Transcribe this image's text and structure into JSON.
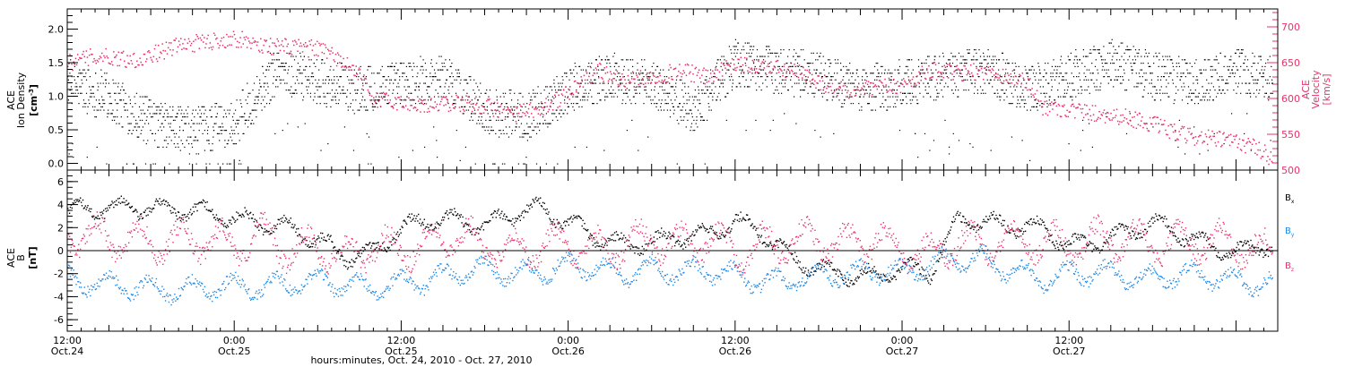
{
  "chart_data": [
    {
      "panel": "ion-density-velocity",
      "type": "scatter",
      "ylabel": {
        "line1": "ACE",
        "line2": "Ion Density",
        "unit": "[cm",
        "unit_sup": "-3",
        "unit_end": "]"
      },
      "ylim": [
        -0.1,
        2.3
      ],
      "yticks": [
        "0.0",
        "0.5",
        "1.0",
        "1.5",
        "2.0"
      ],
      "y2label": {
        "line1": "ACE",
        "line2": "Velocity",
        "unit": "[km/s]"
      },
      "y2lim": [
        500,
        725
      ],
      "y2ticks": [
        "500",
        "550",
        "600",
        "650",
        "700"
      ],
      "colors": {
        "density": "#000000",
        "velocity": "#e8336a"
      },
      "series": [
        {
          "key": "density",
          "axis": "left",
          "anchors": [
            [
              0,
              1.2
            ],
            [
              3,
              1.0
            ],
            [
              6,
              0.6
            ],
            [
              9,
              0.5
            ],
            [
              12,
              0.6
            ],
            [
              15,
              1.4
            ],
            [
              18,
              1.2
            ],
            [
              21,
              1.1
            ],
            [
              24,
              1.2
            ],
            [
              27,
              1.3
            ],
            [
              30,
              0.8
            ],
            [
              33,
              0.7
            ],
            [
              36,
              1.1
            ],
            [
              39,
              1.3
            ],
            [
              42,
              1.2
            ],
            [
              45,
              0.8
            ],
            [
              48,
              1.5
            ],
            [
              51,
              1.4
            ],
            [
              54,
              1.3
            ],
            [
              57,
              1.1
            ],
            [
              60,
              1.2
            ],
            [
              63,
              1.3
            ],
            [
              66,
              1.4
            ],
            [
              69,
              1.1
            ],
            [
              72,
              1.3
            ],
            [
              75,
              1.5
            ],
            [
              78,
              1.3
            ],
            [
              81,
              1.2
            ],
            [
              84,
              1.4
            ],
            [
              86.5,
              1.3
            ]
          ],
          "spread": 0.35
        },
        {
          "key": "velocity",
          "axis": "right",
          "anchors": [
            [
              0,
              650
            ],
            [
              2,
              660
            ],
            [
              5,
              655
            ],
            [
              8,
              675
            ],
            [
              10,
              680
            ],
            [
              12,
              685
            ],
            [
              14,
              675
            ],
            [
              16,
              672
            ],
            [
              18,
              670
            ],
            [
              19,
              660
            ],
            [
              20,
              650
            ],
            [
              21,
              630
            ],
            [
              22,
              600
            ],
            [
              24,
              595
            ],
            [
              26,
              590
            ],
            [
              28,
              595
            ],
            [
              30,
              590
            ],
            [
              32,
              580
            ],
            [
              34,
              585
            ],
            [
              36,
              610
            ],
            [
              38,
              640
            ],
            [
              40,
              625
            ],
            [
              42,
              630
            ],
            [
              44,
              640
            ],
            [
              46,
              630
            ],
            [
              48,
              648
            ],
            [
              50,
              645
            ],
            [
              52,
              640
            ],
            [
              54,
              625
            ],
            [
              56,
              610
            ],
            [
              58,
              615
            ],
            [
              60,
              620
            ],
            [
              62,
              640
            ],
            [
              64,
              635
            ],
            [
              66,
              640
            ],
            [
              68,
              630
            ],
            [
              69,
              622
            ],
            [
              70,
              590
            ],
            [
              72,
              585
            ],
            [
              74,
              580
            ],
            [
              76,
              575
            ],
            [
              78,
              565
            ],
            [
              80,
              550
            ],
            [
              82,
              545
            ],
            [
              84,
              540
            ],
            [
              85,
              535
            ],
            [
              86,
              525
            ],
            [
              86.5,
              518
            ]
          ],
          "spread": 12
        }
      ]
    },
    {
      "panel": "magnetic-field",
      "type": "scatter",
      "ylabel": {
        "line1": "ACE",
        "line2": "B",
        "unit": "[nT]"
      },
      "ylim": [
        -7,
        7
      ],
      "yticks": [
        "-6",
        "-4",
        "-2",
        "0",
        "2",
        "4",
        "6"
      ],
      "reference_line": 0,
      "legend": [
        "B",
        "B",
        "B"
      ],
      "legend_subscripts": [
        "x",
        "y",
        "z"
      ],
      "colors": {
        "Bx": "#000000",
        "By": "#1e88e5",
        "Bz": "#e8336a"
      },
      "series": [
        {
          "name": "Bx",
          "anchors": [
            [
              0,
              3.5
            ],
            [
              4,
              3.8
            ],
            [
              8,
              3.6
            ],
            [
              10,
              3.4
            ],
            [
              12,
              2.8
            ],
            [
              14,
              2.5
            ],
            [
              16,
              2.0
            ],
            [
              18,
              1.0
            ],
            [
              20,
              -0.5
            ],
            [
              22,
              0.0
            ],
            [
              24,
              2.0
            ],
            [
              26,
              2.8
            ],
            [
              28,
              2.6
            ],
            [
              30,
              2.2
            ],
            [
              32,
              3.2
            ],
            [
              34,
              3.8
            ],
            [
              36,
              2.5
            ],
            [
              38,
              1.2
            ],
            [
              40,
              0.5
            ],
            [
              42,
              0.8
            ],
            [
              44,
              1.2
            ],
            [
              46,
              1.5
            ],
            [
              48,
              2.6
            ],
            [
              50,
              1.5
            ],
            [
              52,
              -0.5
            ],
            [
              54,
              -1.5
            ],
            [
              56,
              -2.0
            ],
            [
              58,
              -2.2
            ],
            [
              60,
              -1.5
            ],
            [
              62,
              -1.8
            ],
            [
              64,
              2.8
            ],
            [
              66,
              2.5
            ],
            [
              68,
              2.2
            ],
            [
              70,
              2.0
            ],
            [
              72,
              0.5
            ],
            [
              74,
              0.8
            ],
            [
              76,
              1.5
            ],
            [
              78,
              2.5
            ],
            [
              80,
              1.5
            ],
            [
              82,
              0.5
            ],
            [
              84,
              0.0
            ],
            [
              86,
              0.5
            ]
          ],
          "spread": 1.0
        },
        {
          "name": "By",
          "anchors": [
            [
              0,
              -2.5
            ],
            [
              4,
              -3.0
            ],
            [
              8,
              -3.4
            ],
            [
              10,
              -3.2
            ],
            [
              12,
              -3.0
            ],
            [
              14,
              -3.2
            ],
            [
              16,
              -2.8
            ],
            [
              18,
              -2.5
            ],
            [
              20,
              -3.0
            ],
            [
              22,
              -3.2
            ],
            [
              24,
              -2.8
            ],
            [
              26,
              -2.6
            ],
            [
              28,
              -1.8
            ],
            [
              30,
              -1.5
            ],
            [
              32,
              -2.0
            ],
            [
              34,
              -1.8
            ],
            [
              36,
              -1.2
            ],
            [
              38,
              -1.5
            ],
            [
              40,
              -2.0
            ],
            [
              42,
              -1.5
            ],
            [
              44,
              -1.8
            ],
            [
              46,
              -1.6
            ],
            [
              48,
              -2.0
            ],
            [
              50,
              -2.8
            ],
            [
              52,
              -2.5
            ],
            [
              54,
              -2.2
            ],
            [
              56,
              -2.0
            ],
            [
              58,
              -1.6
            ],
            [
              60,
              -1.8
            ],
            [
              62,
              -1.2
            ],
            [
              64,
              -0.6
            ],
            [
              66,
              -0.8
            ],
            [
              68,
              -1.8
            ],
            [
              70,
              -2.5
            ],
            [
              72,
              -2.0
            ],
            [
              74,
              -1.8
            ],
            [
              76,
              -2.2
            ],
            [
              78,
              -2.4
            ],
            [
              80,
              -2.0
            ],
            [
              82,
              -2.2
            ],
            [
              84,
              -2.6
            ],
            [
              86,
              -2.8
            ]
          ],
          "spread": 1.2
        },
        {
          "name": "Bz",
          "anchors": [
            [
              0,
              1.5
            ],
            [
              4,
              1.0
            ],
            [
              8,
              0.8
            ],
            [
              10,
              1.0
            ],
            [
              12,
              0.5
            ],
            [
              14,
              1.5
            ],
            [
              16,
              0.0
            ],
            [
              18,
              0.5
            ],
            [
              20,
              -0.5
            ],
            [
              22,
              0.5
            ],
            [
              24,
              0.0
            ],
            [
              26,
              0.8
            ],
            [
              28,
              1.5
            ],
            [
              30,
              0.5
            ],
            [
              32,
              0.0
            ],
            [
              34,
              0.5
            ],
            [
              36,
              0.8
            ],
            [
              38,
              0.2
            ],
            [
              40,
              0.5
            ],
            [
              42,
              1.0
            ],
            [
              44,
              0.5
            ],
            [
              46,
              1.2
            ],
            [
              48,
              0.0
            ],
            [
              50,
              0.5
            ],
            [
              52,
              0.8
            ],
            [
              54,
              1.0
            ],
            [
              56,
              0.5
            ],
            [
              58,
              1.2
            ],
            [
              60,
              0.0
            ],
            [
              62,
              -0.5
            ],
            [
              64,
              1.0
            ],
            [
              66,
              0.5
            ],
            [
              68,
              1.2
            ],
            [
              70,
              0.8
            ],
            [
              72,
              0.5
            ],
            [
              74,
              1.0
            ],
            [
              76,
              1.2
            ],
            [
              78,
              0.5
            ],
            [
              80,
              0.8
            ],
            [
              82,
              1.0
            ],
            [
              84,
              0.5
            ],
            [
              86,
              0.0
            ]
          ],
          "spread": 2.0
        }
      ]
    }
  ],
  "xaxis": {
    "xlim": [
      0,
      87
    ],
    "label": "hours:minutes, Oct. 24, 2010 - Oct. 27, 2010",
    "ticks": [
      {
        "hour": 0,
        "time": "12:00",
        "date": "Oct.24"
      },
      {
        "hour": 12,
        "time": "0:00",
        "date": "Oct.25"
      },
      {
        "hour": 24,
        "time": "12:00",
        "date": "Oct.25"
      },
      {
        "hour": 36,
        "time": "0:00",
        "date": "Oct.26"
      },
      {
        "hour": 48,
        "time": "12:00",
        "date": "Oct.26"
      },
      {
        "hour": 60,
        "time": "0:00",
        "date": "Oct.27"
      },
      {
        "hour": 72,
        "time": "12:00",
        "date": "Oct.27"
      }
    ]
  }
}
